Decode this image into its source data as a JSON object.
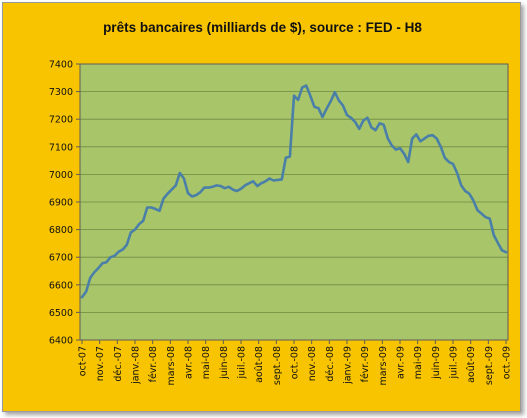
{
  "chart_data": {
    "type": "line",
    "title": "prêts bancaires (milliards de $), source : FED - H8",
    "xlabel": "",
    "ylabel": "",
    "ylim": [
      6400,
      7400
    ],
    "yticks": [
      6400,
      6500,
      6600,
      6700,
      6800,
      6900,
      7000,
      7100,
      7200,
      7300,
      7400
    ],
    "grid": true,
    "legend": "none",
    "xtick_labels": [
      "oct-07",
      "nov.-07",
      "déc.-07",
      "janv.-08",
      "févr.-08",
      "mars-08",
      "avr.-08",
      "mai-08",
      "juin-08",
      "juil.-08",
      "août-08",
      "sept.-08",
      "oct.-08",
      "nov.-08",
      "déc.-08",
      "janv.-09",
      "févr.-09",
      "mars-09",
      "avr.-09",
      "mai-09",
      "juin-09",
      "juil.-09",
      "août-09",
      "sept.-09",
      "oct.-09"
    ],
    "colors": {
      "line": "#4a7fa8",
      "plot_bg": "#a8c56a",
      "frame_bg": "#f8c400",
      "grid": "#6e8a40"
    },
    "series": [
      {
        "values": [
          6555,
          6575,
          6625,
          6645,
          6660,
          6678,
          6682,
          6700,
          6705,
          6720,
          6728,
          6745,
          6790,
          6800,
          6820,
          6832,
          6880,
          6880,
          6875,
          6868,
          6912,
          6930,
          6945,
          6960,
          7005,
          6985,
          6932,
          6920,
          6925,
          6935,
          6952,
          6952,
          6955,
          6960,
          6958,
          6950,
          6955,
          6945,
          6940,
          6948,
          6960,
          6968,
          6975,
          6958,
          6968,
          6975,
          6985,
          6978,
          6980,
          6982,
          7060,
          7065,
          7285,
          7270,
          7315,
          7322,
          7285,
          7245,
          7240,
          7208,
          7238,
          7265,
          7298,
          7268,
          7250,
          7215,
          7205,
          7190,
          7165,
          7195,
          7205,
          7170,
          7160,
          7185,
          7180,
          7130,
          7105,
          7090,
          7095,
          7075,
          7045,
          7130,
          7145,
          7120,
          7130,
          7140,
          7142,
          7130,
          7100,
          7060,
          7045,
          7038,
          7005,
          6960,
          6940,
          6930,
          6905,
          6870,
          6858,
          6845,
          6840,
          6780,
          6752,
          6725,
          6718
        ]
      }
    ]
  }
}
